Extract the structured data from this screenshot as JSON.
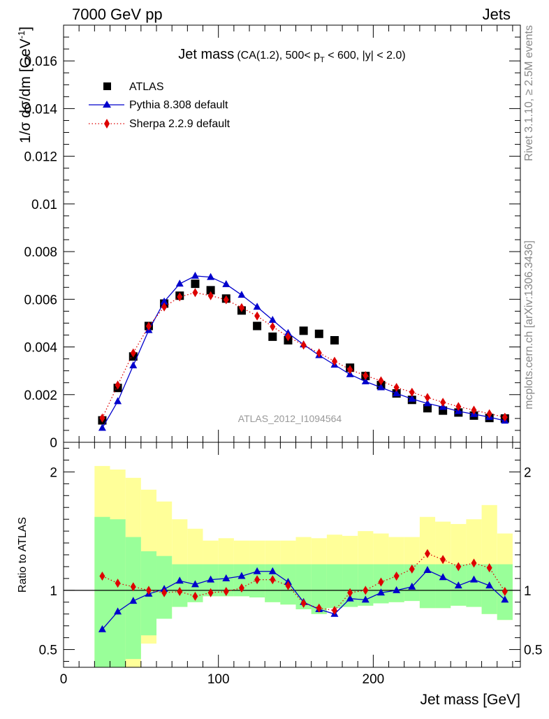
{
  "header": {
    "left": "7000 GeV pp",
    "right": "Jets"
  },
  "side_labels": {
    "rivet": "Rivet 3.1.10, ≥ 2.5M events",
    "mcplots": "mcplots.cern.ch [arXiv:1306.3436]"
  },
  "chart_data": [
    {
      "type": "scatter",
      "title": "Jet mass",
      "subtitle": "(CA(1.2), 500< p_T < 600, |y| < 2.0)",
      "title_parts": {
        "main": "Jet mass",
        "sub_a": "(CA(1.2), 500< p",
        "sub_sub": "T",
        "sub_b": " < 600, |y| < 2.0)"
      },
      "ylabel": "1/σ dσ/dm [GeV⁻¹]",
      "ylabel_parts": {
        "base": "1/σ dσ/dm [GeV",
        "sup": "-1",
        "close": "]"
      },
      "watermark": "ATLAS_2012_I1094564",
      "xlim": [
        0,
        295
      ],
      "ylim": [
        0,
        0.0175
      ],
      "yticks": [
        0,
        0.002,
        0.004,
        0.006,
        0.008,
        0.01,
        0.012,
        0.014,
        0.016
      ],
      "ytick_labels": [
        "0",
        "0.002",
        "0.004",
        "0.006",
        "0.008",
        "0.01",
        "0.012",
        "0.014",
        "0.016"
      ],
      "legend_position": "top-left",
      "x": [
        25,
        35,
        45,
        55,
        65,
        75,
        85,
        95,
        105,
        115,
        125,
        135,
        145,
        155,
        165,
        175,
        185,
        195,
        205,
        215,
        225,
        235,
        245,
        255,
        265,
        275,
        285
      ],
      "series": [
        {
          "name": "ATLAS",
          "style": "data",
          "color": "#000000",
          "marker": "square",
          "values": [
            0.00092,
            0.00228,
            0.0036,
            0.00488,
            0.00582,
            0.00615,
            0.00665,
            0.00638,
            0.00603,
            0.00553,
            0.00488,
            0.00443,
            0.00428,
            0.00468,
            0.00455,
            0.00428,
            0.00313,
            0.00278,
            0.0024,
            0.00205,
            0.00178,
            0.00143,
            0.00133,
            0.00125,
            0.00112,
            0.00102,
            0.001
          ]
        },
        {
          "name": "Pythia 8.308 default",
          "style": "line",
          "color": "#0000cc",
          "marker": "triangle",
          "values": [
            0.0006,
            0.00172,
            0.00322,
            0.0047,
            0.0059,
            0.00665,
            0.00698,
            0.00693,
            0.00663,
            0.00618,
            0.00568,
            0.00513,
            0.00458,
            0.0041,
            0.00365,
            0.00325,
            0.00285,
            0.00255,
            0.0023,
            0.00205,
            0.00182,
            0.00163,
            0.00148,
            0.0013,
            0.00118,
            0.00106,
            0.0009
          ]
        },
        {
          "name": "Sherpa 2.2.9 default",
          "style": "dotted",
          "color": "#dd0000",
          "marker": "diamond",
          "values": [
            0.00102,
            0.0024,
            0.00375,
            0.00487,
            0.00568,
            0.0061,
            0.00628,
            0.00615,
            0.00598,
            0.00565,
            0.0053,
            0.00485,
            0.00443,
            0.00408,
            0.00375,
            0.0034,
            0.00305,
            0.0028,
            0.00258,
            0.0023,
            0.0021,
            0.00188,
            0.00168,
            0.0015,
            0.00135,
            0.0012,
            0.00105
          ]
        }
      ]
    },
    {
      "type": "line",
      "ylabel": "Ratio to ATLAS",
      "xlabel": "Jet mass [GeV]",
      "xlim": [
        0,
        295
      ],
      "ylim": [
        0.35,
        2.25
      ],
      "yticks": [
        0.5,
        1,
        2
      ],
      "ytick_labels": [
        "0.5",
        "1",
        "2"
      ],
      "xticks": [
        0,
        100,
        200
      ],
      "xtick_labels": [
        "0",
        "100",
        "200"
      ],
      "reference_line": 1,
      "x": [
        25,
        35,
        45,
        55,
        65,
        75,
        85,
        95,
        105,
        115,
        125,
        135,
        145,
        155,
        165,
        175,
        185,
        195,
        205,
        215,
        225,
        235,
        245,
        255,
        265,
        275,
        285
      ],
      "bin_edges": [
        20,
        30,
        40,
        50,
        60,
        70,
        80,
        90,
        100,
        110,
        120,
        130,
        140,
        150,
        160,
        170,
        180,
        190,
        200,
        210,
        220,
        230,
        240,
        250,
        260,
        270,
        280,
        290
      ],
      "bands": [
        {
          "name": "outer",
          "color": "#ffff99",
          "low": [
            0.35,
            0.35,
            0.35,
            0.55,
            0.76,
            0.86,
            0.9,
            0.95,
            0.95,
            0.95,
            0.94,
            0.9,
            0.88,
            0.84,
            0.8,
            0.85,
            0.86,
            0.87,
            0.89,
            0.9,
            0.91,
            0.85,
            0.85,
            0.87,
            0.86,
            0.8,
            0.75
          ],
          "high": [
            2.05,
            2.02,
            1.95,
            1.85,
            1.75,
            1.6,
            1.52,
            1.42,
            1.44,
            1.42,
            1.42,
            1.42,
            1.42,
            1.45,
            1.44,
            1.47,
            1.46,
            1.5,
            1.48,
            1.45,
            1.45,
            1.62,
            1.58,
            1.56,
            1.6,
            1.72,
            1.48
          ]
        },
        {
          "name": "inner",
          "color": "#99ff99",
          "low": [
            0.35,
            0.35,
            0.42,
            0.62,
            0.76,
            0.86,
            0.9,
            0.95,
            0.95,
            0.95,
            0.94,
            0.9,
            0.88,
            0.84,
            0.8,
            0.85,
            0.86,
            0.87,
            0.89,
            0.9,
            0.91,
            0.85,
            0.85,
            0.87,
            0.86,
            0.8,
            0.75
          ],
          "high": [
            1.62,
            1.6,
            1.45,
            1.33,
            1.29,
            1.22,
            1.22,
            1.22,
            1.22,
            1.22,
            1.22,
            1.22,
            1.22,
            1.22,
            1.22,
            1.22,
            1.22,
            1.22,
            1.22,
            1.22,
            1.22,
            1.22,
            1.22,
            1.22,
            1.22,
            1.22,
            1.22
          ]
        }
      ],
      "series": [
        {
          "name": "Pythia 8.308 default",
          "style": "line",
          "color": "#0000cc",
          "marker": "triangle",
          "values": [
            0.67,
            0.82,
            0.91,
            0.97,
            1.01,
            1.08,
            1.05,
            1.09,
            1.1,
            1.12,
            1.16,
            1.16,
            1.07,
            0.9,
            0.84,
            0.8,
            0.93,
            0.92,
            0.98,
            1.0,
            1.03,
            1.17,
            1.11,
            1.04,
            1.09,
            1.04,
            0.92
          ]
        },
        {
          "name": "Sherpa 2.2.9 default",
          "style": "dotted",
          "color": "#dd0000",
          "marker": "diamond",
          "values": [
            1.12,
            1.06,
            1.03,
            1.0,
            0.98,
            0.99,
            0.95,
            0.98,
            0.99,
            1.02,
            1.09,
            1.09,
            1.04,
            0.89,
            0.85,
            0.83,
            0.98,
            1.0,
            1.07,
            1.12,
            1.18,
            1.31,
            1.26,
            1.2,
            1.23,
            1.19,
            0.99
          ]
        }
      ]
    }
  ]
}
